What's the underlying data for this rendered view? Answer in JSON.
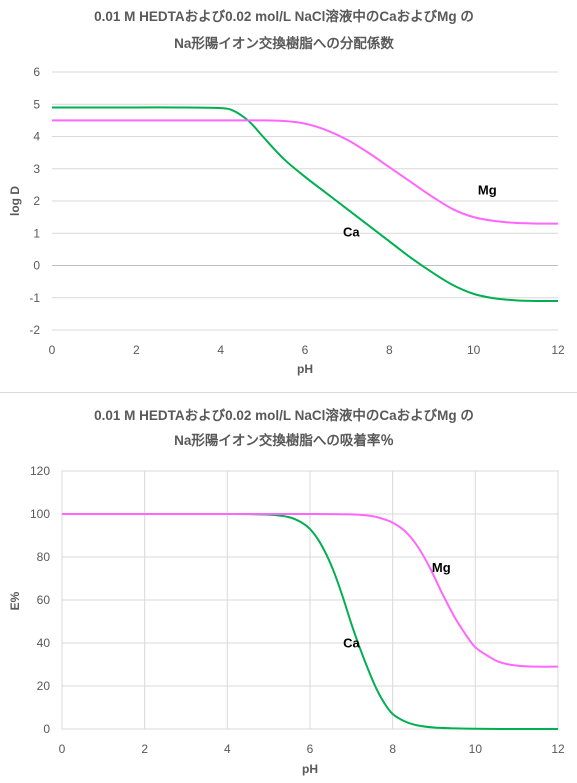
{
  "colors": {
    "ca": "#00b050",
    "mg": "#ff66ff",
    "grid": "#d9d9d9",
    "text": "#595959"
  },
  "chart_data": [
    {
      "type": "line",
      "title_line1": "0.01 M HEDTAおよび0.02 mol/L NaCl溶液中のCaおよびMg の",
      "title_line2": "Na形陽イオン交換樹脂への分配係数",
      "xlabel": "pH",
      "ylabel": "log D",
      "xlim": [
        0,
        12
      ],
      "ylim": [
        -2,
        6
      ],
      "xticks": [
        "0",
        "2",
        "4",
        "6",
        "8",
        "10",
        "12"
      ],
      "yticks": [
        "-2",
        "-1",
        "0",
        "1",
        "2",
        "3",
        "4",
        "5",
        "6"
      ],
      "grid": "horizontal",
      "series": [
        {
          "name": "Ca",
          "color": "#00b050",
          "x": [
            0,
            1,
            2,
            3,
            4,
            4.3,
            4.6,
            4.8,
            5,
            5.5,
            6,
            6.5,
            7,
            7.5,
            8,
            8.5,
            9,
            9.5,
            10,
            10.5,
            11,
            11.5,
            12
          ],
          "y": [
            4.9,
            4.9,
            4.9,
            4.9,
            4.88,
            4.8,
            4.55,
            4.3,
            4.0,
            3.3,
            2.75,
            2.25,
            1.75,
            1.25,
            0.75,
            0.25,
            -0.2,
            -0.6,
            -0.88,
            -1.02,
            -1.08,
            -1.1,
            -1.1
          ]
        },
        {
          "name": "Mg",
          "color": "#ff66ff",
          "x": [
            0,
            1,
            2,
            3,
            4,
            5,
            5.5,
            6,
            6.5,
            7,
            7.5,
            8,
            8.5,
            9,
            9.5,
            10,
            10.5,
            11,
            11.5,
            12
          ],
          "y": [
            4.5,
            4.5,
            4.5,
            4.5,
            4.5,
            4.5,
            4.48,
            4.4,
            4.2,
            3.9,
            3.5,
            3.05,
            2.6,
            2.15,
            1.75,
            1.5,
            1.38,
            1.32,
            1.3,
            1.3
          ]
        }
      ],
      "annotations": [
        {
          "text": "Mg",
          "x": 10.1,
          "y": 2.2
        },
        {
          "text": "Ca",
          "x": 6.9,
          "y": 0.9
        }
      ]
    },
    {
      "type": "line",
      "title_line1": "0.01 M HEDTAおよび0.02 mol/L NaCl溶液中のCaおよびMg の",
      "title_line2": "Na形陽イオン交換樹脂への吸着率％",
      "xlabel": "pH",
      "ylabel": "E%",
      "xlim": [
        0,
        12
      ],
      "ylim": [
        0,
        120
      ],
      "xticks": [
        "0",
        "2",
        "4",
        "6",
        "8",
        "10",
        "12"
      ],
      "yticks": [
        "0",
        "20",
        "40",
        "60",
        "80",
        "100",
        "120"
      ],
      "grid": "both",
      "series": [
        {
          "name": "Ca",
          "color": "#00b050",
          "x": [
            0,
            2,
            4,
            5,
            5.5,
            5.8,
            6,
            6.2,
            6.4,
            6.6,
            6.8,
            7,
            7.2,
            7.4,
            7.6,
            7.8,
            8,
            8.3,
            8.6,
            9,
            9.5,
            10,
            11,
            12
          ],
          "y": [
            100,
            100,
            100,
            99.7,
            98.5,
            96,
            93,
            88,
            81,
            72,
            61,
            49,
            38,
            28,
            19,
            12,
            7,
            3.5,
            1.7,
            0.7,
            0.3,
            0.1,
            0,
            0
          ]
        },
        {
          "name": "Mg",
          "color": "#ff66ff",
          "x": [
            0,
            2,
            4,
            6,
            7,
            7.5,
            7.8,
            8,
            8.3,
            8.6,
            8.9,
            9.2,
            9.5,
            9.8,
            10,
            10.3,
            10.6,
            11,
            11.5,
            12
          ],
          "y": [
            100,
            100,
            100,
            100,
            99.8,
            99,
            97.5,
            96,
            92,
            85,
            75,
            63,
            52,
            43,
            38,
            34,
            31,
            29.5,
            29,
            29
          ]
        }
      ],
      "annotations": [
        {
          "text": "Mg",
          "x": 8.95,
          "y": 73
        },
        {
          "text": "Ca",
          "x": 6.8,
          "y": 38
        }
      ]
    }
  ]
}
